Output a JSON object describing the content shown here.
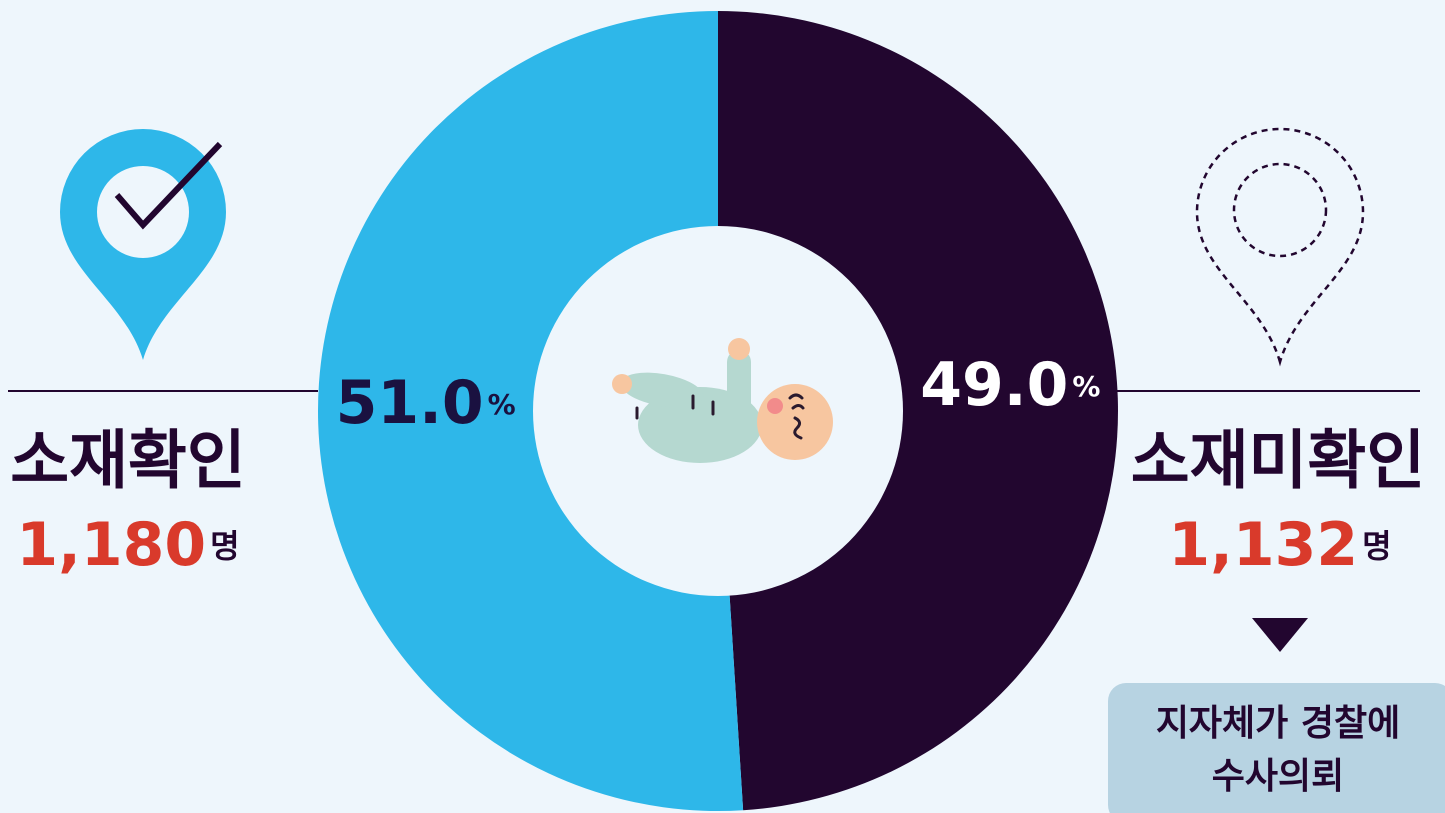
{
  "chart_data": {
    "type": "donut",
    "categories": [
      "소재확인",
      "소재미확인"
    ],
    "values": [
      51.0,
      49.0
    ],
    "value_labels": [
      "51.0",
      "49.0"
    ],
    "value_unit": "%",
    "colors": [
      "#2eb7e9",
      "#22062f"
    ],
    "label_colors": [
      "#1a1140",
      "#ffffff"
    ],
    "counts": [
      "1,180",
      "1,132"
    ],
    "count_unit": "명",
    "note": [
      "지자체가 경찰에",
      "수사의뢰"
    ]
  }
}
